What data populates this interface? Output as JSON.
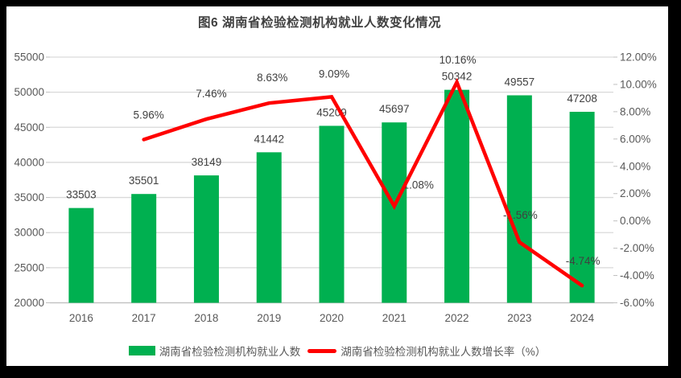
{
  "title": "图6 湖南省检验检测机构就业人数变化情况",
  "chart_data": {
    "type": "combo",
    "categories": [
      "2016",
      "2017",
      "2018",
      "2019",
      "2020",
      "2021",
      "2022",
      "2023",
      "2024"
    ],
    "series": [
      {
        "name": "湖南省检验检测机构就业人数",
        "type": "bar",
        "axis": "left",
        "color": "#00B050",
        "values": [
          33503,
          35501,
          38149,
          41442,
          45209,
          45697,
          50342,
          49557,
          47208
        ],
        "labels": [
          "33503",
          "35501",
          "38149",
          "41442",
          "45209",
          "45697",
          "50342",
          "49557",
          "47208"
        ]
      },
      {
        "name": "湖南省检验检测机构就业人数增长率（%）",
        "type": "line",
        "axis": "right",
        "color": "#FF0000",
        "values": [
          null,
          5.96,
          7.46,
          8.63,
          9.09,
          1.08,
          10.16,
          -1.56,
          -4.74
        ],
        "labels": [
          null,
          "5.96%",
          "7.46%",
          "8.63%",
          "9.09%",
          "1.08%",
          "10.16%",
          "-1.56%",
          "-4.74%"
        ]
      }
    ],
    "left_axis": {
      "min": 20000,
      "max": 55000,
      "step": 5000,
      "tick_labels": [
        "55000",
        "50000",
        "45000",
        "40000",
        "35000",
        "30000",
        "25000",
        "20000"
      ]
    },
    "right_axis": {
      "min": -6,
      "max": 12,
      "step": 2,
      "tick_labels": [
        "12.00%",
        "10.00%",
        "8.00%",
        "6.00%",
        "4.00%",
        "2.00%",
        "0.00%",
        "-2.00%",
        "-4.00%",
        "-6.00%"
      ]
    },
    "grid": true,
    "legend_position": "bottom"
  },
  "legend": {
    "items": [
      {
        "label": "湖南省检验检测机构就业人数",
        "swatch": "bar",
        "color": "#00B050"
      },
      {
        "label": "湖南省检验检测机构就业人数增长率（%）",
        "swatch": "line",
        "color": "#FF0000"
      }
    ]
  },
  "colors": {
    "bar": "#00B050",
    "line": "#FF0000",
    "gridline": "#D9D9D9",
    "axis_line": "#BFBFBF",
    "tick_text": "#595959",
    "data_label": "#404040",
    "title_text": "#404040",
    "frame": "#000000"
  }
}
